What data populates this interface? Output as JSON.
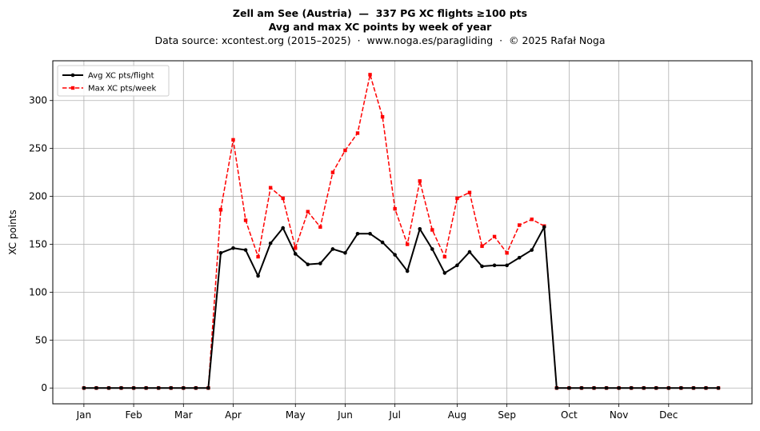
{
  "chart_data": {
    "type": "line",
    "title_line1": "Zell am See (Austria)  —  337 PG XC flights ≥100 pts",
    "title_line2": "Avg and max XC points by week of year",
    "subtitle": "Data source: xcontest.org (2015–2025)  ·  www.noga.es/paragliding  ·  © 2025 Rafał Noga",
    "xlabel": "",
    "ylabel": "XC points",
    "x_weeks": [
      1,
      2,
      3,
      4,
      5,
      6,
      7,
      8,
      9,
      10,
      11,
      12,
      13,
      14,
      15,
      16,
      17,
      18,
      19,
      20,
      21,
      22,
      23,
      24,
      25,
      26,
      27,
      28,
      29,
      30,
      31,
      32,
      33,
      34,
      35,
      36,
      37,
      38,
      39,
      40,
      41,
      42,
      43,
      44,
      45,
      46,
      47,
      48,
      49,
      50,
      51,
      52
    ],
    "month_ticks": [
      {
        "label": "Jan",
        "week": 1
      },
      {
        "label": "Feb",
        "week": 5
      },
      {
        "label": "Mar",
        "week": 9
      },
      {
        "label": "Apr",
        "week": 13
      },
      {
        "label": "May",
        "week": 18
      },
      {
        "label": "Jun",
        "week": 22
      },
      {
        "label": "Jul",
        "week": 26
      },
      {
        "label": "Aug",
        "week": 31
      },
      {
        "label": "Sep",
        "week": 35
      },
      {
        "label": "Oct",
        "week": 40
      },
      {
        "label": "Nov",
        "week": 44
      },
      {
        "label": "Dec",
        "week": 48
      }
    ],
    "y_ticks": [
      0,
      50,
      100,
      150,
      200,
      250,
      300
    ],
    "xlim": [
      -1.5,
      54.7
    ],
    "ylim": [
      -16.5,
      341.5
    ],
    "grid": true,
    "legend_placement": "top-left",
    "series": [
      {
        "name": "Avg XC pts/flight",
        "color": "#000000",
        "style": "solid-circle",
        "values": [
          0,
          0,
          0,
          0,
          0,
          0,
          0,
          0,
          0,
          0,
          0,
          141,
          146,
          144,
          117,
          151,
          167,
          140,
          129,
          130,
          145,
          141,
          161,
          161,
          152,
          139,
          122,
          166,
          145,
          120,
          128,
          142,
          127,
          128,
          128,
          136,
          144,
          168,
          0,
          0,
          0,
          0,
          0,
          0,
          0,
          0,
          0,
          0,
          0,
          0,
          0,
          0
        ]
      },
      {
        "name": "Max XC pts/week",
        "color": "#ff0000",
        "style": "dashed-square",
        "values": [
          0,
          0,
          0,
          0,
          0,
          0,
          0,
          0,
          0,
          0,
          0,
          186,
          259,
          175,
          137,
          209,
          198,
          146,
          184,
          168,
          225,
          248,
          266,
          327,
          283,
          187,
          150,
          216,
          165,
          137,
          198,
          204,
          148,
          158,
          141,
          170,
          176,
          169,
          0,
          0,
          0,
          0,
          0,
          0,
          0,
          0,
          0,
          0,
          0,
          0,
          0,
          0
        ]
      }
    ]
  }
}
